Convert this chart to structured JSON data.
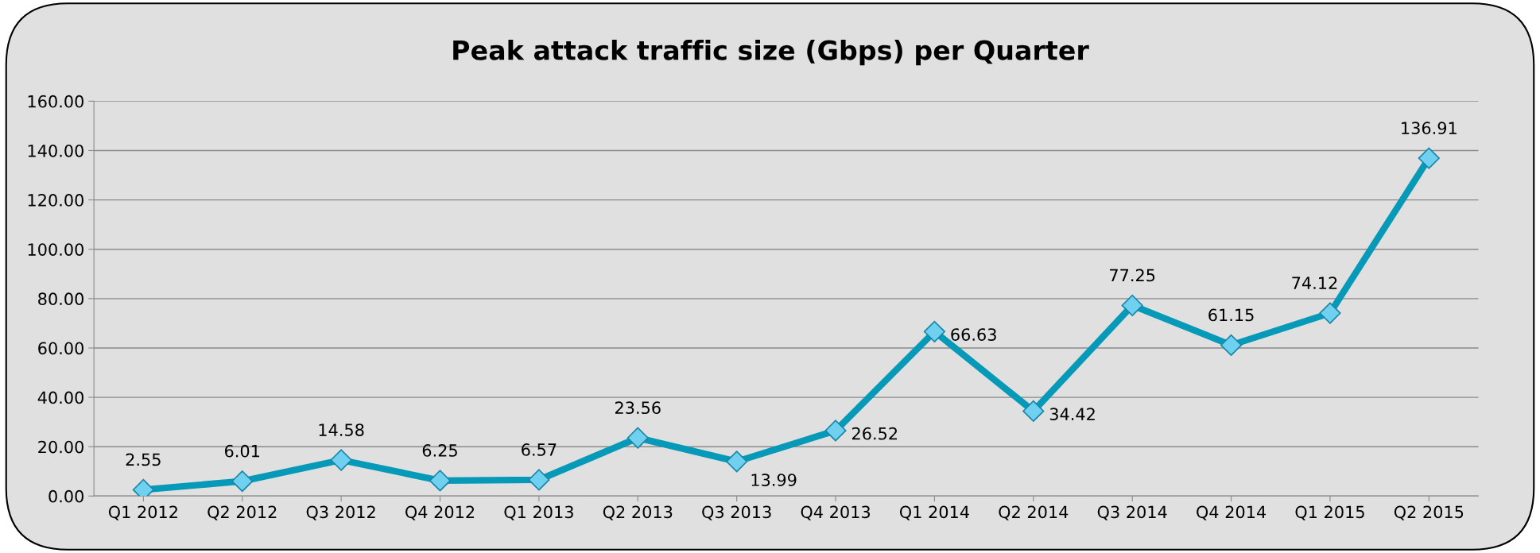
{
  "chart_data": {
    "type": "line",
    "title": "Peak attack traffic size (Gbps) per Quarter",
    "categories": [
      "Q1 2012",
      "Q2 2012",
      "Q3 2012",
      "Q4 2012",
      "Q1 2013",
      "Q2 2013",
      "Q3 2013",
      "Q4 2013",
      "Q1 2014",
      "Q2 2014",
      "Q3 2014",
      "Q4 2014",
      "Q1 2015",
      "Q2 2015"
    ],
    "series": [
      {
        "color": "#0799b8",
        "values": [
          2.55,
          6.01,
          14.58,
          6.25,
          6.57,
          23.56,
          13.99,
          26.52,
          66.63,
          34.42,
          77.25,
          61.15,
          74.12,
          136.91
        ]
      }
    ],
    "ylim": [
      0,
      160
    ],
    "yticks": [
      {
        "value": 0,
        "label": "0.00"
      },
      {
        "value": 20,
        "label": "20.00"
      },
      {
        "value": 40,
        "label": "40.00"
      },
      {
        "value": 60,
        "label": "60.00"
      },
      {
        "value": 80,
        "label": "80.00"
      },
      {
        "value": 100,
        "label": "100.00"
      },
      {
        "value": 120,
        "label": "120.00"
      },
      {
        "value": 140,
        "label": "140.00"
      },
      {
        "value": 160,
        "label": "160.00"
      }
    ],
    "grid": "y",
    "marker": "diamond",
    "line_style": "solid",
    "data_labels": true
  }
}
